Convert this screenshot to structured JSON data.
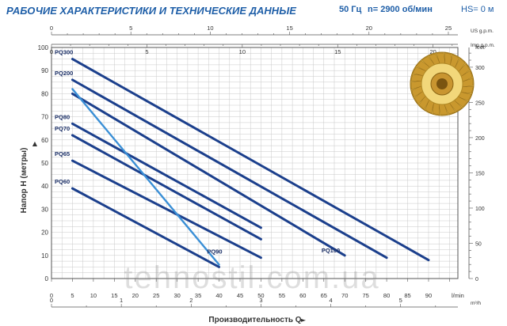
{
  "header": {
    "title": "РАБОЧИЕ ХАРАКТЕРИСТИКИ И ТЕХНИЧЕСКИЕ ДАННЫЕ",
    "frequency": "50 Гц",
    "speed": "n= 2900 об/мин",
    "hs": "HS= 0 м"
  },
  "watermark": "tehnostil.com.ua",
  "colors": {
    "series": "#1b3f8c",
    "pq90": "#3a8fd6",
    "grid": "#c9c9c9",
    "axis": "#555555",
    "title": "#1f5fa8"
  },
  "chart_data": {
    "type": "line",
    "ylabel": "Напор H (метры)",
    "xlabel": "Производительность Q",
    "ylim": [
      0,
      100
    ],
    "y_ticks": [
      0,
      10,
      20,
      30,
      40,
      50,
      60,
      70,
      80,
      90,
      100
    ],
    "xlim": [
      0,
      97
    ],
    "axes": {
      "lmin": {
        "unit": "l/min",
        "min": 0,
        "max": 97,
        "ticks": [
          0,
          5,
          10,
          15,
          20,
          25,
          30,
          35,
          40,
          45,
          50,
          55,
          60,
          65,
          70,
          75,
          80,
          85,
          90
        ]
      },
      "m3h": {
        "unit": "m³/h",
        "min": 0,
        "max": 5.82,
        "ticks": [
          0,
          1,
          2,
          3,
          4,
          5
        ]
      },
      "usgpm": {
        "unit": "US g.p.m.",
        "min": 0,
        "max": 25.6,
        "ticks": [
          0,
          5,
          10,
          15,
          20,
          25
        ]
      },
      "impgpm": {
        "unit": "Imp g.p.m.",
        "min": 0,
        "max": 21.3,
        "ticks": [
          0,
          5,
          10,
          15,
          20
        ]
      },
      "feet": {
        "unit": "feet",
        "min": 0,
        "max": 328,
        "ticks": [
          0,
          50,
          100,
          150,
          200,
          250,
          300
        ]
      }
    },
    "series": [
      {
        "name": "PQ300",
        "x": [
          5,
          90
        ],
        "y": [
          95,
          8
        ]
      },
      {
        "name": "PQ200",
        "x": [
          5,
          80
        ],
        "y": [
          86,
          9
        ]
      },
      {
        "name": "PQ100",
        "x": [
          5,
          70
        ],
        "y": [
          80,
          10
        ]
      },
      {
        "name": "PQ80",
        "x": [
          5,
          50
        ],
        "y": [
          67,
          22
        ]
      },
      {
        "name": "PQ70",
        "x": [
          5,
          50
        ],
        "y": [
          62,
          17
        ]
      },
      {
        "name": "PQ65",
        "x": [
          5,
          50
        ],
        "y": [
          51,
          9
        ]
      },
      {
        "name": "PQ60",
        "x": [
          5,
          40
        ],
        "y": [
          39,
          5
        ]
      },
      {
        "name": "PQ90",
        "x": [
          5,
          40
        ],
        "y": [
          82,
          6
        ]
      }
    ]
  }
}
